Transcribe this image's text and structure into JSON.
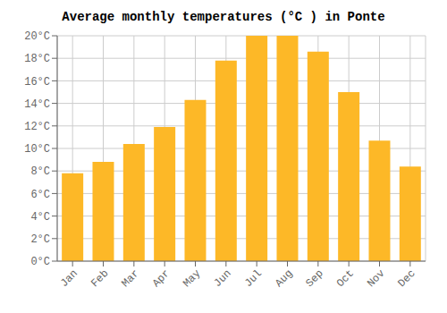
{
  "chart_data": {
    "type": "bar",
    "title": "Average monthly temperatures (°C ) in Ponte",
    "categories": [
      "Jan",
      "Feb",
      "Mar",
      "Apr",
      "May",
      "Jun",
      "Jul",
      "Aug",
      "Sep",
      "Oct",
      "Nov",
      "Dec"
    ],
    "values": [
      7.8,
      8.8,
      10.4,
      11.9,
      14.3,
      17.8,
      20.0,
      20.0,
      18.6,
      15.0,
      10.7,
      8.4
    ],
    "color": "#FDB827",
    "ylim": [
      0,
      20
    ],
    "yticks": [
      {
        "value": 0,
        "label": "0°C"
      },
      {
        "value": 2,
        "label": "2°C"
      },
      {
        "value": 4,
        "label": "4°C"
      },
      {
        "value": 6,
        "label": "6°C"
      },
      {
        "value": 8,
        "label": "8°C"
      },
      {
        "value": 10,
        "label": "10°C"
      },
      {
        "value": 12,
        "label": "12°C"
      },
      {
        "value": 14,
        "label": "14°C"
      },
      {
        "value": 16,
        "label": "16°C"
      },
      {
        "value": 18,
        "label": "18°C"
      },
      {
        "value": 20,
        "label": "20°C"
      }
    ],
    "grid": true
  }
}
